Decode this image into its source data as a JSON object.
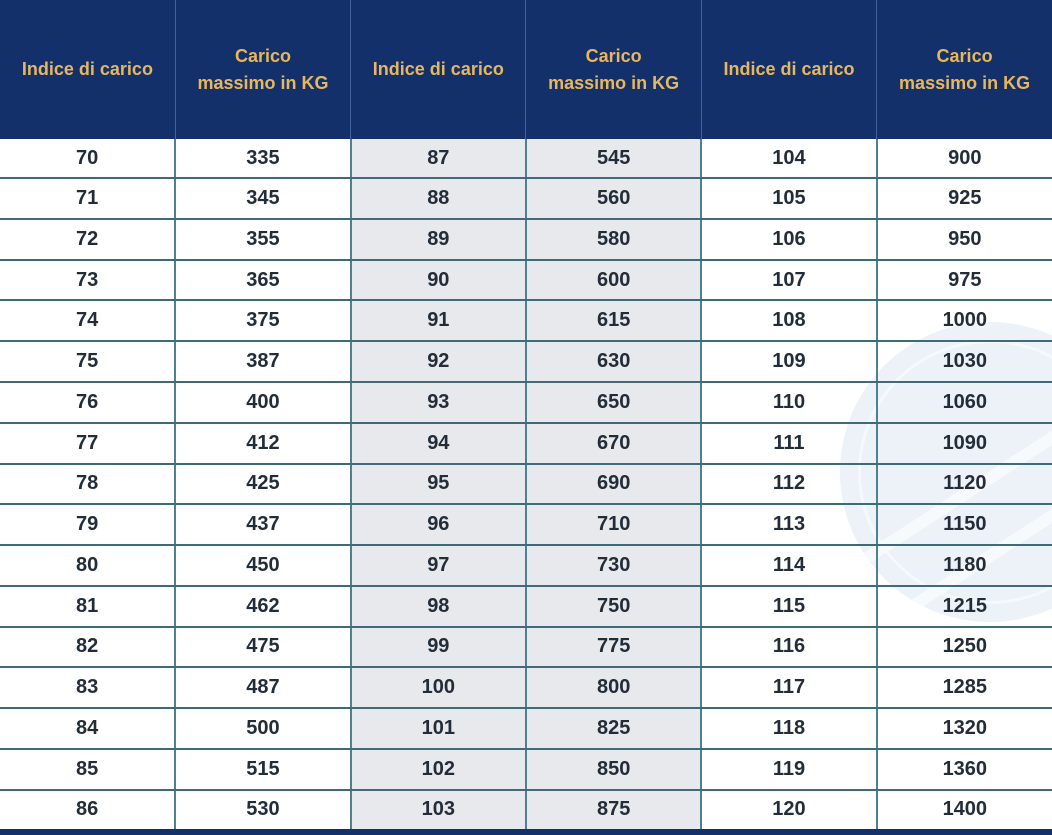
{
  "styles": {
    "header_bg": "#13306b",
    "header_text": "#e7b75d",
    "shaded_column_bg": "#e7e9ec",
    "grid_horizontal": "#3f6b79",
    "grid_vertical": "#4e7f92",
    "body_text": "#232d39",
    "watermark": "#ecf2f8",
    "bottom_bar": "#13306b"
  },
  "chart_data": {
    "type": "table",
    "title": "",
    "columns": [
      "Indice di carico",
      "Carico massimo in KG",
      "Indice di carico",
      "Carico massimo in KG",
      "Indice di carico",
      "Carico massimo in KG"
    ],
    "rows": [
      [
        70,
        335,
        87,
        545,
        104,
        900
      ],
      [
        71,
        345,
        88,
        560,
        105,
        925
      ],
      [
        72,
        355,
        89,
        580,
        106,
        950
      ],
      [
        73,
        365,
        90,
        600,
        107,
        975
      ],
      [
        74,
        375,
        91,
        615,
        108,
        1000
      ],
      [
        75,
        387,
        92,
        630,
        109,
        1030
      ],
      [
        76,
        400,
        93,
        650,
        110,
        1060
      ],
      [
        77,
        412,
        94,
        670,
        111,
        1090
      ],
      [
        78,
        425,
        95,
        690,
        112,
        1120
      ],
      [
        79,
        437,
        96,
        710,
        113,
        1150
      ],
      [
        80,
        450,
        97,
        730,
        114,
        1180
      ],
      [
        81,
        462,
        98,
        750,
        115,
        1215
      ],
      [
        82,
        475,
        99,
        775,
        116,
        1250
      ],
      [
        83,
        487,
        100,
        800,
        117,
        1285
      ],
      [
        84,
        500,
        101,
        825,
        118,
        1320
      ],
      [
        85,
        515,
        102,
        850,
        119,
        1360
      ],
      [
        86,
        530,
        103,
        875,
        120,
        1400
      ]
    ],
    "layout_hints": {
      "shaded_column_indexes": [
        2,
        3
      ],
      "header_rows": 1,
      "grid": true
    }
  }
}
